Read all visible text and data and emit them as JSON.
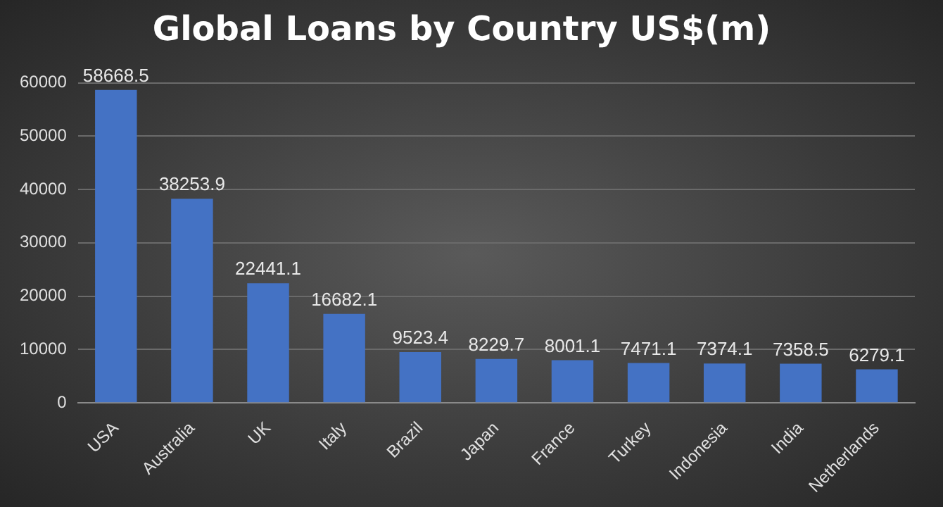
{
  "chart_data": {
    "type": "bar",
    "title": "Global Loans by Country US$(m)",
    "categories": [
      "USA",
      "Australia",
      "UK",
      "Italy",
      "Brazil",
      "Japan",
      "France",
      "Turkey",
      "Indonesia",
      "India",
      "Netherlands"
    ],
    "values": [
      58668.5,
      38253.9,
      22441.1,
      16682.1,
      9523.4,
      8229.7,
      8001.1,
      7471.1,
      7374.1,
      7358.5,
      6279.1
    ],
    "color": "#4472c4",
    "ylim": [
      0,
      60000
    ],
    "yticks": [
      0,
      10000,
      20000,
      30000,
      40000,
      50000,
      60000
    ],
    "grid": "y",
    "data_labels": true
  }
}
